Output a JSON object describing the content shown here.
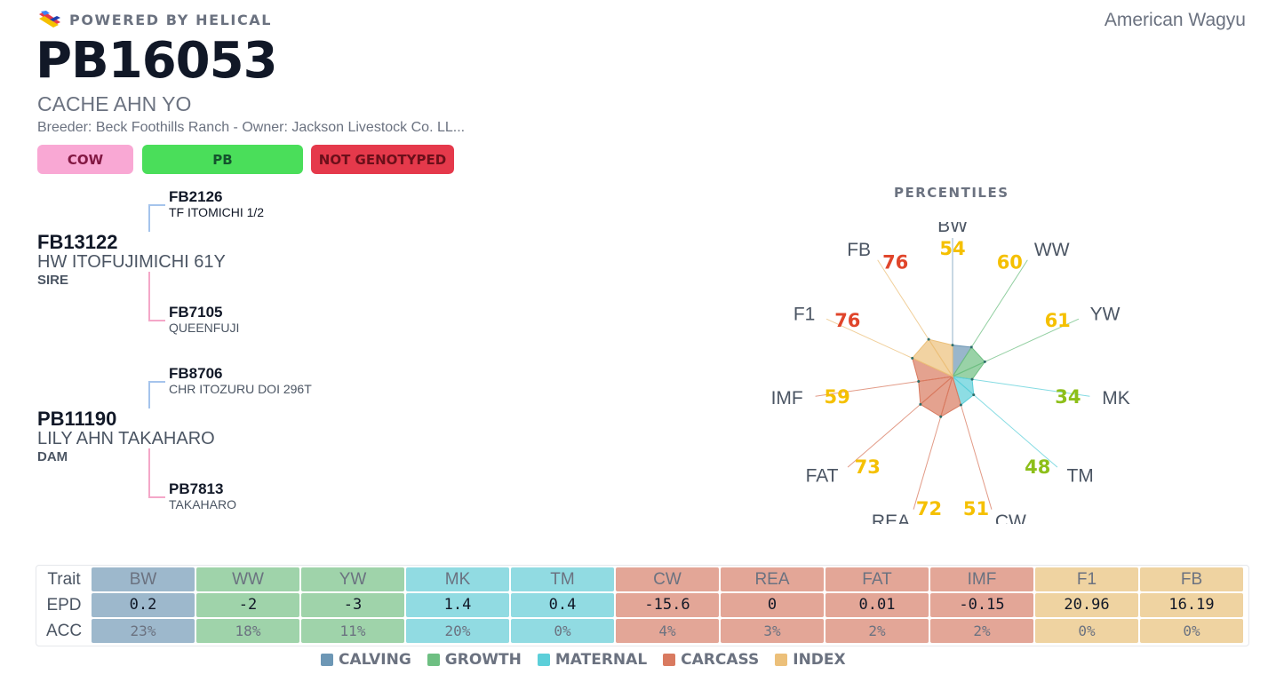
{
  "header": {
    "powered_by": "POWERED BY HELICAL",
    "breed": "American Wagyu",
    "registration": "PB16053",
    "name": "CACHE AHN YO",
    "breeder_owner": "Breeder: Beck Foothills Ranch - Owner: Jackson Livestock Co. LL..."
  },
  "badges": {
    "sex": "COW",
    "breed_code": "PB",
    "genotype": "NOT GENOTYPED"
  },
  "pedigree": {
    "sire": {
      "id": "FB13122",
      "name": "HW ITOFUJIMICHI 61Y",
      "role": "SIRE",
      "sire": {
        "id": "FB2126",
        "name": "TF ITOMICHI 1/2"
      },
      "dam": {
        "id": "FB7105",
        "name": "QUEENFUJI"
      }
    },
    "dam": {
      "id": "PB11190",
      "name": "LILY AHN TAKAHARO",
      "role": "DAM",
      "sire": {
        "id": "FB8706",
        "name": "CHR ITOZURU DOI 296T"
      },
      "dam": {
        "id": "PB7813",
        "name": "TAKAHARO"
      }
    }
  },
  "colors": {
    "calving": "#6d97b5",
    "growth": "#6ebf82",
    "maternal": "#5ccfd9",
    "carcass": "#d97a60",
    "index": "#ecc07a",
    "pct_low": "#e0452b",
    "pct_mid": "#f5c000",
    "pct_high": "#8dbf1a"
  },
  "chart_data": {
    "type": "radar",
    "title": "PERCENTILES",
    "range": [
      0,
      100
    ],
    "axes": [
      "BW",
      "WW",
      "YW",
      "MK",
      "TM",
      "CW",
      "REA",
      "FAT",
      "IMF",
      "F1",
      "FB"
    ],
    "groups": [
      "calving",
      "growth",
      "growth",
      "maternal",
      "maternal",
      "carcass",
      "carcass",
      "carcass",
      "carcass",
      "index",
      "index"
    ],
    "values": [
      54,
      60,
      61,
      34,
      48,
      51,
      72,
      73,
      59,
      76,
      76
    ],
    "value_colors": [
      "pct_mid",
      "pct_mid",
      "pct_mid",
      "pct_high",
      "pct_high",
      "pct_mid",
      "pct_mid",
      "pct_mid",
      "pct_mid",
      "pct_low",
      "pct_low"
    ]
  },
  "epd_table": {
    "row_labels": {
      "trait": "Trait",
      "epd": "EPD",
      "acc": "ACC"
    },
    "columns": [
      {
        "trait": "BW",
        "epd": "0.2",
        "acc": "23%",
        "group": "calving"
      },
      {
        "trait": "WW",
        "epd": "-2",
        "acc": "18%",
        "group": "growth"
      },
      {
        "trait": "YW",
        "epd": "-3",
        "acc": "11%",
        "group": "growth"
      },
      {
        "trait": "MK",
        "epd": "1.4",
        "acc": "20%",
        "group": "maternal"
      },
      {
        "trait": "TM",
        "epd": "0.4",
        "acc": "0%",
        "group": "maternal"
      },
      {
        "trait": "CW",
        "epd": "-15.6",
        "acc": "4%",
        "group": "carcass"
      },
      {
        "trait": "REA",
        "epd": "0",
        "acc": "3%",
        "group": "carcass"
      },
      {
        "trait": "FAT",
        "epd": "0.01",
        "acc": "2%",
        "group": "carcass"
      },
      {
        "trait": "IMF",
        "epd": "-0.15",
        "acc": "2%",
        "group": "carcass"
      },
      {
        "trait": "F1",
        "epd": "20.96",
        "acc": "0%",
        "group": "index"
      },
      {
        "trait": "FB",
        "epd": "16.19",
        "acc": "0%",
        "group": "index"
      }
    ]
  },
  "legend": [
    {
      "key": "calving",
      "label": "CALVING"
    },
    {
      "key": "growth",
      "label": "GROWTH"
    },
    {
      "key": "maternal",
      "label": "MATERNAL"
    },
    {
      "key": "carcass",
      "label": "CARCASS"
    },
    {
      "key": "index",
      "label": "INDEX"
    }
  ]
}
